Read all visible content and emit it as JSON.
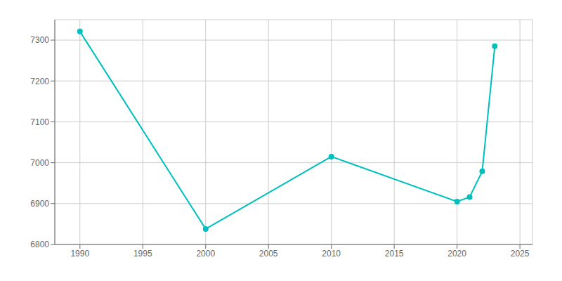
{
  "chart_data": {
    "type": "line",
    "x": [
      1990,
      2000,
      2010,
      2020,
      2021,
      2022,
      2023
    ],
    "values": [
      7321,
      6838,
      7015,
      6905,
      6916,
      6979,
      7285
    ],
    "color": "#00BFBF",
    "marker": "circle",
    "xlim": [
      1988,
      2026
    ],
    "ylim": [
      6800,
      7350
    ],
    "xticks": [
      1990,
      1995,
      2000,
      2005,
      2010,
      2015,
      2020,
      2025
    ],
    "yticks": [
      6800,
      6900,
      7000,
      7100,
      7200,
      7300
    ],
    "grid": true
  }
}
